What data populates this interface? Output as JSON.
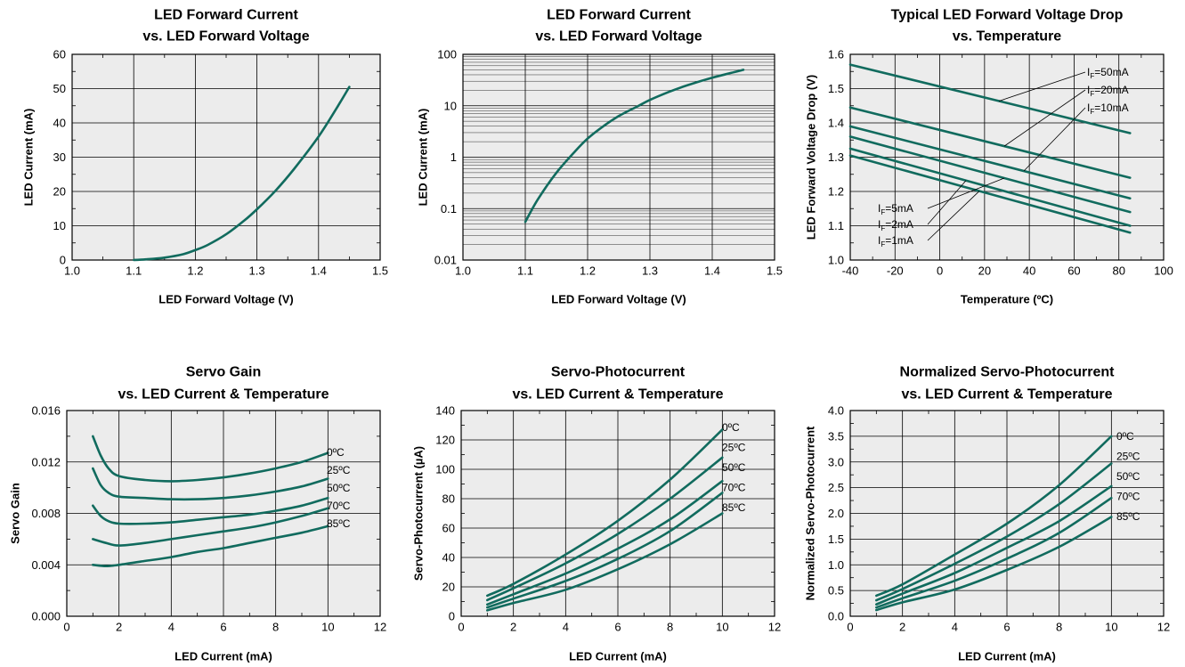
{
  "colors": {
    "curve": "#116b5e",
    "plot_background": "#ececec",
    "grid": "#000000"
  },
  "chart_data": [
    {
      "type": "line",
      "title": [
        "LED Forward Current",
        "vs. LED Forward Voltage"
      ],
      "xlabel": "LED Forward Voltage (V)",
      "ylabel": "LED Current (mA)",
      "xlim": [
        1.0,
        1.5
      ],
      "ylim": [
        0,
        60
      ],
      "xticks": [
        1.0,
        1.1,
        1.2,
        1.3,
        1.4,
        1.5
      ],
      "xtick_labels": [
        "1.0",
        "1.1",
        "1.2",
        "1.3",
        "1.4",
        "1.5"
      ],
      "yticks": [
        0,
        10,
        20,
        30,
        40,
        50,
        60
      ],
      "ytick_labels": [
        "0",
        "10",
        "20",
        "30",
        "40",
        "50",
        "60"
      ],
      "yscale": "linear",
      "grid": true,
      "series": [
        {
          "x": [
            1.1,
            1.12,
            1.15,
            1.18,
            1.2,
            1.22,
            1.25,
            1.28,
            1.3,
            1.33,
            1.36,
            1.4,
            1.43,
            1.45
          ],
          "y": [
            0,
            0.2,
            0.7,
            1.7,
            2.9,
            4.4,
            7.5,
            11.6,
            14.8,
            20.2,
            26.5,
            36,
            44.5,
            50.5
          ]
        }
      ]
    },
    {
      "type": "line",
      "title": [
        "LED Forward Current",
        "vs. LED Forward Voltage"
      ],
      "xlabel": "LED Forward Voltage (V)",
      "ylabel": "LED Current (mA)",
      "xlim": [
        1.0,
        1.5
      ],
      "ylim": [
        0.01,
        100
      ],
      "xticks": [
        1.0,
        1.1,
        1.2,
        1.3,
        1.4,
        1.5
      ],
      "xtick_labels": [
        "1.0",
        "1.1",
        "1.2",
        "1.3",
        "1.4",
        "1.5"
      ],
      "yticks": [
        0.01,
        0.1,
        1,
        10,
        100
      ],
      "ytick_labels": [
        "0.01",
        "0.1",
        "1",
        "10",
        "100"
      ],
      "yscale": "log",
      "grid": true,
      "series": [
        {
          "x": [
            1.1,
            1.12,
            1.15,
            1.18,
            1.2,
            1.22,
            1.25,
            1.28,
            1.3,
            1.33,
            1.36,
            1.4,
            1.43,
            1.45
          ],
          "y": [
            0.055,
            0.15,
            0.5,
            1.3,
            2.3,
            3.6,
            6.3,
            9.7,
            13,
            18.5,
            25,
            35,
            43.5,
            50
          ]
        }
      ]
    },
    {
      "type": "line",
      "title": [
        "Typical LED Forward Voltage Drop",
        "vs. Temperature"
      ],
      "xlabel": "Temperature (ºC)",
      "ylabel": "LED Forward Voltage Drop (V)",
      "xlim": [
        -40,
        100
      ],
      "ylim": [
        1.0,
        1.6
      ],
      "xticks": [
        -40,
        -20,
        0,
        20,
        40,
        60,
        80,
        100
      ],
      "xtick_labels": [
        "-40",
        "-20",
        "0",
        "20",
        "40",
        "60",
        "80",
        "100"
      ],
      "yticks": [
        1.0,
        1.1,
        1.2,
        1.3,
        1.4,
        1.5,
        1.6
      ],
      "ytick_labels": [
        "1.0",
        "1.1",
        "1.2",
        "1.3",
        "1.4",
        "1.5",
        "1.6"
      ],
      "yscale": "linear",
      "grid": true,
      "annotations": [
        {
          "sub_text": "F",
          "value_text": "=50mA"
        },
        {
          "sub_text": "F",
          "value_text": "=20mA"
        },
        {
          "sub_text": "F",
          "value_text": "=10mA"
        },
        {
          "sub_text": "F",
          "value_text": "=5mA"
        },
        {
          "sub_text": "F",
          "value_text": "=2mA"
        },
        {
          "sub_text": "F",
          "value_text": "=1mA"
        }
      ],
      "annotation_prefix": "I",
      "series": [
        {
          "x": [
            -40,
            85
          ],
          "y": [
            1.57,
            1.37
          ]
        },
        {
          "x": [
            -40,
            85
          ],
          "y": [
            1.445,
            1.24
          ]
        },
        {
          "x": [
            -40,
            85
          ],
          "y": [
            1.39,
            1.18
          ]
        },
        {
          "x": [
            -40,
            85
          ],
          "y": [
            1.36,
            1.14
          ]
        },
        {
          "x": [
            -40,
            85
          ],
          "y": [
            1.325,
            1.1
          ]
        },
        {
          "x": [
            -40,
            85
          ],
          "y": [
            1.305,
            1.08
          ]
        }
      ]
    },
    {
      "type": "line",
      "title": [
        "Servo Gain",
        "vs. LED Current & Temperature"
      ],
      "xlabel": "LED Current (mA)",
      "ylabel": "Servo Gain",
      "xlim": [
        0,
        12
      ],
      "ylim": [
        0,
        0.016
      ],
      "xticks": [
        0,
        2,
        4,
        6,
        8,
        10,
        12
      ],
      "xtick_labels": [
        "0",
        "2",
        "4",
        "6",
        "8",
        "10",
        "12"
      ],
      "yticks": [
        0,
        0.004,
        0.008,
        0.012,
        0.016
      ],
      "ytick_labels": [
        "0.000",
        "0.004",
        "0.008",
        "0.012",
        "0.016"
      ],
      "yscale": "linear",
      "grid": true,
      "series": [
        {
          "name": "0ºC",
          "x": [
            1,
            1.3,
            1.6,
            2,
            3,
            4,
            5,
            6,
            7,
            8,
            9,
            10
          ],
          "y": [
            0.014,
            0.0125,
            0.0115,
            0.0109,
            0.0106,
            0.0105,
            0.0106,
            0.0108,
            0.0111,
            0.0115,
            0.012,
            0.0127
          ]
        },
        {
          "name": "25ºC",
          "x": [
            1,
            1.3,
            1.6,
            2,
            3,
            4,
            5,
            6,
            7,
            8,
            9,
            10
          ],
          "y": [
            0.0115,
            0.0102,
            0.0096,
            0.0093,
            0.0092,
            0.0091,
            0.0091,
            0.0092,
            0.0094,
            0.0097,
            0.0101,
            0.0107
          ]
        },
        {
          "name": "50ºC",
          "x": [
            1,
            1.3,
            1.6,
            2,
            3,
            4,
            5,
            6,
            7,
            8,
            9,
            10
          ],
          "y": [
            0.0086,
            0.0078,
            0.0074,
            0.0072,
            0.0072,
            0.0073,
            0.0075,
            0.0077,
            0.0079,
            0.0082,
            0.0086,
            0.0092
          ]
        },
        {
          "name": "70ºC",
          "x": [
            1,
            1.5,
            2,
            3,
            4,
            5,
            6,
            7,
            8,
            9,
            10
          ],
          "y": [
            0.006,
            0.0057,
            0.0055,
            0.0057,
            0.006,
            0.0063,
            0.0066,
            0.0069,
            0.0073,
            0.0078,
            0.0084
          ]
        },
        {
          "name": "85ºC",
          "x": [
            1,
            1.5,
            2,
            3,
            4,
            5,
            6,
            7,
            8,
            9,
            10
          ],
          "y": [
            0.004,
            0.0039,
            0.004,
            0.0043,
            0.0046,
            0.005,
            0.0053,
            0.0057,
            0.0061,
            0.0065,
            0.007
          ]
        }
      ]
    },
    {
      "type": "line",
      "title": [
        "Servo-Photocurrent",
        "vs. LED Current & Temperature"
      ],
      "xlabel": "LED Current (mA)",
      "ylabel": "Servo-Photocurrent (µA)",
      "xlim": [
        0,
        12
      ],
      "ylim": [
        0,
        140
      ],
      "xticks": [
        0,
        2,
        4,
        6,
        8,
        10,
        12
      ],
      "xtick_labels": [
        "0",
        "2",
        "4",
        "6",
        "8",
        "10",
        "12"
      ],
      "yticks": [
        0,
        20,
        40,
        60,
        80,
        100,
        120,
        140
      ],
      "ytick_labels": [
        "0",
        "20",
        "40",
        "60",
        "80",
        "100",
        "120",
        "140"
      ],
      "yscale": "linear",
      "grid": true,
      "series": [
        {
          "name": "0ºC",
          "x": [
            1,
            2,
            4,
            6,
            8,
            10
          ],
          "y": [
            14,
            22,
            42,
            65,
            93,
            127
          ]
        },
        {
          "name": "25ºC",
          "x": [
            1,
            2,
            4,
            6,
            8,
            10
          ],
          "y": [
            11,
            19,
            36,
            56,
            80,
            108
          ]
        },
        {
          "name": "50ºC",
          "x": [
            1,
            2,
            4,
            6,
            8,
            10
          ],
          "y": [
            8,
            15,
            29,
            46,
            66,
            92
          ]
        },
        {
          "name": "70ºC",
          "x": [
            1,
            2,
            4,
            6,
            8,
            10
          ],
          "y": [
            6,
            12,
            24,
            39,
            58,
            84
          ]
        },
        {
          "name": "85ºC",
          "x": [
            1,
            2,
            4,
            6,
            8,
            10
          ],
          "y": [
            4,
            9,
            18,
            32,
            49,
            70
          ]
        }
      ]
    },
    {
      "type": "line",
      "title": [
        "Normalized Servo-Photocurrent",
        "vs. LED Current & Temperature"
      ],
      "xlabel": "LED Current (mA)",
      "ylabel": "Normalized Servo-Photocurrent",
      "xlim": [
        0,
        12
      ],
      "ylim": [
        0,
        4.0
      ],
      "xticks": [
        0,
        2,
        4,
        6,
        8,
        10,
        12
      ],
      "xtick_labels": [
        "0",
        "2",
        "4",
        "6",
        "8",
        "10",
        "12"
      ],
      "yticks": [
        0,
        0.5,
        1.0,
        1.5,
        2.0,
        2.5,
        3.0,
        3.5,
        4.0
      ],
      "ytick_labels": [
        "0.0",
        "0.5",
        "1.0",
        "1.5",
        "2.0",
        "2.5",
        "3.0",
        "3.5",
        "4.0"
      ],
      "yscale": "linear",
      "grid": true,
      "series": [
        {
          "name": "0ºC",
          "x": [
            1,
            2,
            4,
            6,
            8,
            10
          ],
          "y": [
            0.4,
            0.62,
            1.2,
            1.8,
            2.55,
            3.5
          ]
        },
        {
          "name": "25ºC",
          "x": [
            1,
            2,
            4,
            6,
            8,
            10
          ],
          "y": [
            0.31,
            0.53,
            1.02,
            1.55,
            2.18,
            2.97
          ]
        },
        {
          "name": "50ºC",
          "x": [
            1,
            2,
            4,
            6,
            8,
            10
          ],
          "y": [
            0.23,
            0.44,
            0.84,
            1.33,
            1.85,
            2.53
          ]
        },
        {
          "name": "70ºC",
          "x": [
            1,
            2,
            4,
            6,
            8,
            10
          ],
          "y": [
            0.17,
            0.35,
            0.69,
            1.12,
            1.62,
            2.3
          ]
        },
        {
          "name": "85ºC",
          "x": [
            1,
            2,
            4,
            6,
            8,
            10
          ],
          "y": [
            0.12,
            0.27,
            0.52,
            0.9,
            1.35,
            1.93
          ]
        }
      ]
    }
  ]
}
